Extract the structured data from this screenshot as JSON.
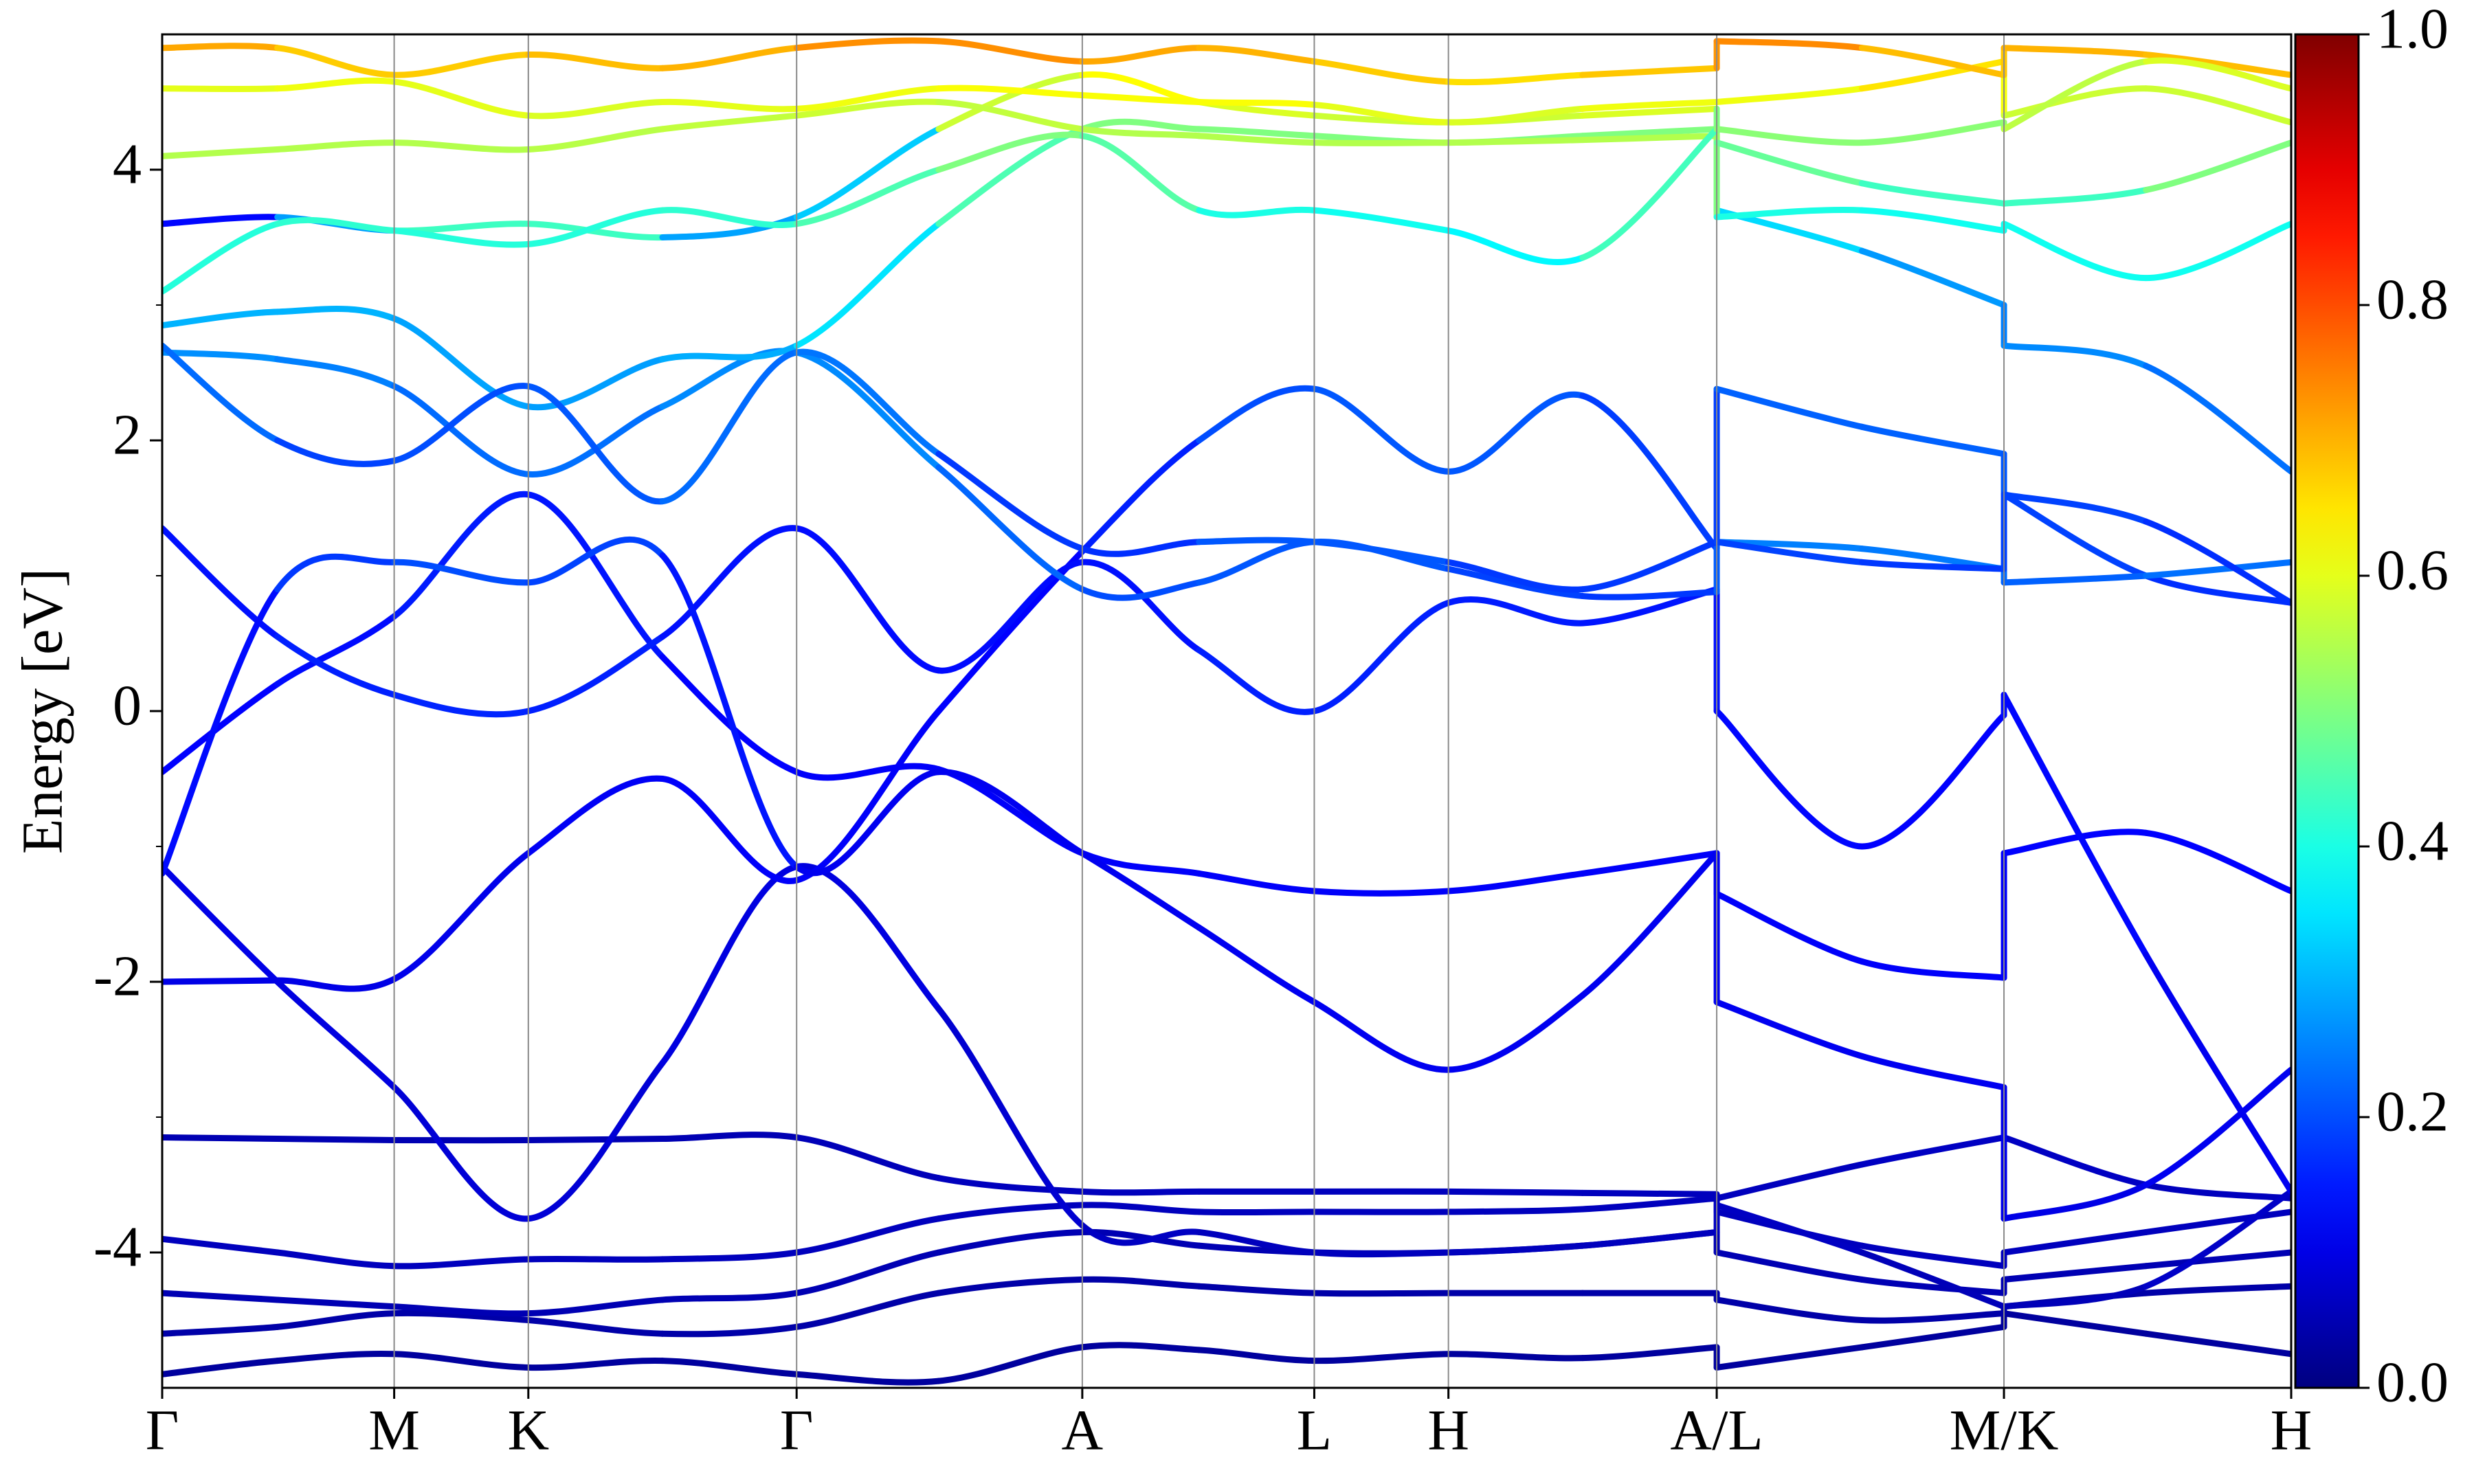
{
  "chart_data": {
    "type": "band-structure",
    "ylabel": "Energy [eV]",
    "colormap": "jet",
    "xlim": [
      0,
      13.49
    ],
    "xticks": [
      {
        "value": 0,
        "label": "Γ"
      },
      {
        "value": 1.47,
        "label": "M"
      },
      {
        "value": 2.32,
        "label": "K"
      },
      {
        "value": 4.02,
        "label": "Γ"
      },
      {
        "value": 5.83,
        "label": "A"
      },
      {
        "value": 7.3,
        "label": "L"
      },
      {
        "value": 8.15,
        "label": "H"
      },
      {
        "value": 9.85,
        "label": "A/L"
      },
      {
        "value": 11.67,
        "label": "M/K"
      },
      {
        "value": 13.49,
        "label": "H"
      }
    ],
    "ylim": [
      -5,
      5
    ],
    "yticks": [
      -4,
      -2,
      0,
      2,
      4
    ],
    "yminorticks": [
      -3,
      -1,
      1,
      3
    ],
    "grid": true,
    "clim": [
      0,
      1
    ],
    "cticks": [
      {
        "value": 0,
        "label": "0.0"
      },
      {
        "value": 0.2,
        "label": "0.2"
      },
      {
        "value": 0.4,
        "label": "0.4"
      },
      {
        "value": 0.6,
        "label": "0.6"
      },
      {
        "value": 0.8,
        "label": "0.8"
      },
      {
        "value": 1,
        "label": "1.0"
      }
    ],
    "x": [
      0,
      0.73,
      1.47,
      2.32,
      3.17,
      4.02,
      4.92,
      5.83,
      6.57,
      7.3,
      8.15,
      9.0,
      9.85,
      9.85,
      10.77,
      11.67,
      11.67,
      12.57,
      13.49
    ],
    "series": [
      {
        "values": [
          -4.9,
          -4.8,
          -4.75,
          -4.85,
          -4.8,
          -4.9,
          -4.95,
          -4.7,
          -4.72,
          -4.8,
          -4.75,
          -4.78,
          -4.7,
          -4.85,
          -4.7,
          -4.55,
          -4.45,
          -4.6,
          -4.75
        ],
        "weights": [
          0.03,
          0.03,
          0.03,
          0.03,
          0.03,
          0.03,
          0.03,
          0.03,
          0.03,
          0.03,
          0.03,
          0.03,
          0.03,
          0.03,
          0.03,
          0.03,
          0.03,
          0.03,
          0.03
        ]
      },
      {
        "values": [
          -4.6,
          -4.55,
          -4.45,
          -4.5,
          -4.6,
          -4.55,
          -4.3,
          -4.2,
          -4.25,
          -4.3,
          -4.3,
          -4.3,
          -4.3,
          -4.35,
          -4.5,
          -4.45,
          -4.4,
          -4.3,
          -4.25
        ],
        "weights": [
          0.04,
          0.04,
          0.04,
          0.04,
          0.04,
          0.04,
          0.04,
          0.04,
          0.04,
          0.04,
          0.04,
          0.04,
          0.04,
          0.04,
          0.04,
          0.04,
          0.04,
          0.04,
          0.04
        ]
      },
      {
        "values": [
          -4.3,
          -4.35,
          -4.4,
          -4.45,
          -4.35,
          -4.3,
          -4.0,
          -3.85,
          -3.95,
          -4.0,
          -4.0,
          -3.95,
          -3.85,
          -4.0,
          -4.2,
          -4.3,
          -4.2,
          -4.1,
          -4.0
        ],
        "weights": [
          0.05,
          0.05,
          0.05,
          0.05,
          0.05,
          0.05,
          0.05,
          0.05,
          0.05,
          0.05,
          0.05,
          0.05,
          0.05,
          0.05,
          0.05,
          0.05,
          0.05,
          0.05,
          0.05
        ]
      },
      {
        "values": [
          -3.9,
          -4.0,
          -4.1,
          -4.05,
          -4.05,
          -4.0,
          -3.75,
          -3.65,
          -3.7,
          -3.7,
          -3.7,
          -3.68,
          -3.6,
          -3.7,
          -3.95,
          -4.1,
          -4.0,
          -3.85,
          -3.7
        ],
        "weights": [
          0.06,
          0.06,
          0.06,
          0.06,
          0.06,
          0.06,
          0.06,
          0.06,
          0.06,
          0.06,
          0.06,
          0.06,
          0.06,
          0.06,
          0.06,
          0.06,
          0.06,
          0.06,
          0.06
        ]
      },
      {
        "values": [
          -3.15,
          -3.16,
          -3.17,
          -3.17,
          -3.16,
          -3.15,
          -3.45,
          -3.55,
          -3.55,
          -3.55,
          -3.55,
          -3.56,
          -3.57,
          -3.6,
          -3.35,
          -3.15,
          -3.15,
          -3.5,
          -3.6
        ],
        "weights": [
          0.05,
          0.05,
          0.05,
          0.05,
          0.05,
          0.05,
          0.06,
          0.06,
          0.06,
          0.06,
          0.06,
          0.06,
          0.06,
          0.06,
          0.06,
          0.07,
          0.07,
          0.06,
          0.06
        ]
      },
      {
        "values": [
          -1.15,
          -2.0,
          -2.78,
          -3.75,
          -2.6,
          -1.15,
          -2.2,
          -3.8,
          -3.85,
          -4.0,
          -4.0,
          -3.95,
          -3.85,
          -3.65,
          -4.0,
          -4.4,
          -4.4,
          -4.25,
          -3.55
        ],
        "weights": [
          0.1,
          0.1,
          0.09,
          0.08,
          0.09,
          0.1,
          0.09,
          0.07,
          0.06,
          0.06,
          0.06,
          0.06,
          0.06,
          0.07,
          0.06,
          0.05,
          0.05,
          0.06,
          0.08
        ]
      },
      {
        "values": [
          -2.0,
          -1.99,
          -1.98,
          -1.05,
          -0.5,
          -1.25,
          0.0,
          1.18,
          2.0,
          2.38,
          1.77,
          2.33,
          1.2,
          2.38,
          2.1,
          1.9,
          1.6,
          1.0,
          0.8
        ],
        "weights": [
          0.1,
          0.1,
          0.1,
          0.11,
          0.12,
          0.12,
          0.12,
          0.13,
          0.18,
          0.22,
          0.2,
          0.22,
          0.15,
          0.22,
          0.22,
          0.22,
          0.2,
          0.18,
          0.16
        ]
      },
      {
        "values": [
          -0.45,
          0.2,
          0.7,
          1.6,
          0.4,
          -0.45,
          -0.43,
          -1.05,
          -1.2,
          -1.33,
          -1.33,
          -1.2,
          -1.05,
          -1.35,
          -1.85,
          -1.97,
          -1.05,
          -0.9,
          -1.33
        ],
        "weights": [
          0.12,
          0.13,
          0.14,
          0.16,
          0.13,
          0.12,
          0.12,
          0.12,
          0.12,
          0.12,
          0.12,
          0.12,
          0.12,
          0.12,
          0.12,
          0.12,
          0.12,
          0.13,
          0.12
        ]
      },
      {
        "values": [
          1.35,
          0.55,
          0.12,
          0.0,
          0.55,
          1.35,
          0.3,
          1.1,
          0.45,
          0.0,
          0.8,
          0.65,
          0.9,
          0.0,
          -1.0,
          -0.03,
          0.12,
          -1.8,
          -3.55
        ],
        "weights": [
          0.13,
          0.15,
          0.16,
          0.16,
          0.15,
          0.13,
          0.14,
          0.13,
          0.15,
          0.16,
          0.15,
          0.15,
          0.14,
          0.14,
          0.12,
          0.13,
          0.14,
          0.12,
          0.1
        ]
      },
      {
        "values": [
          -1.2,
          0.9,
          1.1,
          0.95,
          1.15,
          -1.15,
          -0.45,
          -1.05,
          -1.6,
          -2.15,
          -2.65,
          -2.1,
          -1.05,
          -2.15,
          -2.55,
          -2.78,
          -3.75,
          -3.5,
          -2.65
        ],
        "weights": [
          0.11,
          0.16,
          0.2,
          0.2,
          0.18,
          0.11,
          0.11,
          0.11,
          0.11,
          0.11,
          0.11,
          0.11,
          0.11,
          0.11,
          0.11,
          0.11,
          0.1,
          0.1,
          0.12
        ]
      },
      {
        "values": [
          2.65,
          2.6,
          2.4,
          1.75,
          2.25,
          2.65,
          1.8,
          0.9,
          0.95,
          1.25,
          1.05,
          0.85,
          0.88,
          1.25,
          1.2,
          1.05,
          0.95,
          1.0,
          1.1
        ],
        "weights": [
          0.27,
          0.26,
          0.24,
          0.22,
          0.25,
          0.27,
          0.25,
          0.2,
          0.2,
          0.22,
          0.2,
          0.18,
          0.18,
          0.25,
          0.25,
          0.24,
          0.22,
          0.22,
          0.25
        ]
      },
      {
        "values": [
          2.85,
          2.95,
          2.9,
          2.25,
          2.6,
          2.7,
          3.6,
          4.3,
          4.3,
          4.25,
          4.2,
          4.25,
          4.3,
          3.7,
          3.4,
          3.0,
          2.7,
          2.55,
          1.77
        ],
        "weights": [
          0.3,
          0.3,
          0.3,
          0.27,
          0.29,
          0.3,
          0.4,
          0.5,
          0.5,
          0.5,
          0.5,
          0.5,
          0.5,
          0.38,
          0.3,
          0.25,
          0.25,
          0.27,
          0.2
        ]
      },
      {
        "values": [
          3.6,
          3.65,
          3.55,
          3.6,
          3.5,
          3.65,
          4.3,
          4.7,
          4.5,
          4.4,
          4.35,
          4.4,
          4.45,
          3.65,
          3.7,
          3.55,
          3.6,
          3.2,
          3.6
        ],
        "weights": [
          0.12,
          0.14,
          0.42,
          0.45,
          0.42,
          0.15,
          0.5,
          0.65,
          0.6,
          0.58,
          0.57,
          0.58,
          0.6,
          0.4,
          0.4,
          0.38,
          0.4,
          0.38,
          0.4
        ]
      },
      {
        "values": [
          4.1,
          4.15,
          4.2,
          4.15,
          4.3,
          4.4,
          4.5,
          4.3,
          4.25,
          4.2,
          4.2,
          4.22,
          4.25,
          4.2,
          3.9,
          3.75,
          3.75,
          3.85,
          4.2
        ],
        "weights": [
          0.55,
          0.55,
          0.55,
          0.55,
          0.56,
          0.57,
          0.58,
          0.55,
          0.55,
          0.55,
          0.55,
          0.55,
          0.55,
          0.5,
          0.45,
          0.42,
          0.42,
          0.45,
          0.55
        ]
      },
      {
        "values": [
          4.6,
          4.6,
          4.65,
          4.4,
          4.5,
          4.45,
          4.6,
          4.55,
          4.5,
          4.48,
          4.35,
          4.45,
          4.5,
          4.5,
          4.6,
          4.8,
          4.4,
          4.6,
          4.35
        ],
        "weights": [
          0.6,
          0.6,
          0.62,
          0.58,
          0.6,
          0.6,
          0.62,
          0.62,
          0.62,
          0.62,
          0.58,
          0.6,
          0.62,
          0.6,
          0.62,
          0.68,
          0.55,
          0.6,
          0.55
        ]
      },
      {
        "values": [
          4.9,
          4.9,
          4.7,
          4.85,
          4.75,
          4.9,
          4.95,
          4.8,
          4.9,
          4.8,
          4.65,
          4.7,
          4.75,
          4.95,
          4.9,
          4.7,
          4.9,
          4.85,
          4.7
        ],
        "weights": [
          0.72,
          0.7,
          0.65,
          0.7,
          0.68,
          0.72,
          0.75,
          0.72,
          0.7,
          0.7,
          0.65,
          0.66,
          0.7,
          0.76,
          0.72,
          0.66,
          0.7,
          0.7,
          0.68
        ]
      },
      {
        "values": [
          3.1,
          3.6,
          3.55,
          3.45,
          3.7,
          3.6,
          4.0,
          4.25,
          3.7,
          3.7,
          3.55,
          3.35,
          4.3,
          4.3,
          4.2,
          4.35,
          4.3,
          4.8,
          4.6
        ],
        "weights": [
          0.4,
          0.42,
          0.42,
          0.4,
          0.42,
          0.42,
          0.48,
          0.52,
          0.4,
          0.4,
          0.38,
          0.36,
          0.52,
          0.52,
          0.5,
          0.52,
          0.52,
          0.6,
          0.58
        ]
      },
      {
        "values": [
          2.7,
          2.0,
          1.85,
          2.4,
          1.55,
          2.65,
          1.9,
          1.2,
          1.25,
          1.25,
          1.1,
          0.9,
          1.25,
          1.25,
          1.1,
          1.05,
          1.6,
          1.4,
          0.8
        ],
        "weights": [
          0.26,
          0.2,
          0.18,
          0.22,
          0.2,
          0.26,
          0.22,
          0.14,
          0.2,
          0.22,
          0.2,
          0.16,
          0.2,
          0.2,
          0.18,
          0.18,
          0.2,
          0.18,
          0.16
        ]
      }
    ]
  }
}
